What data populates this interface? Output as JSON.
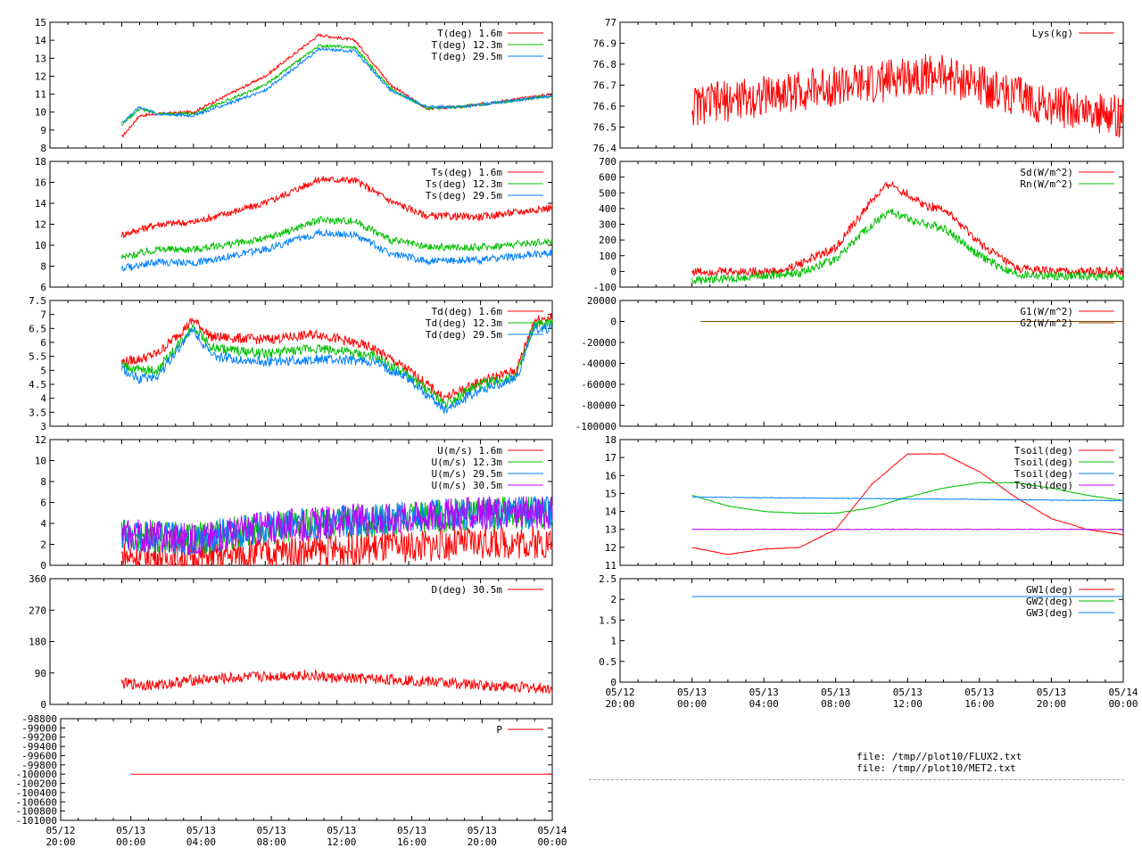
{
  "files": [
    "file: /tmp//plot10/FLUX2.txt",
    "file: /tmp//plot10/MET2.txt"
  ],
  "time_axis": {
    "labels": [
      [
        "05/12",
        "20:00"
      ],
      [
        "05/13",
        "00:00"
      ],
      [
        "05/13",
        "04:00"
      ],
      [
        "05/13",
        "08:00"
      ],
      [
        "05/13",
        "12:00"
      ],
      [
        "05/13",
        "16:00"
      ],
      [
        "05/13",
        "20:00"
      ],
      [
        "05/14",
        "00:00"
      ]
    ],
    "range_hours": [
      0,
      28
    ]
  },
  "chart_data": [
    {
      "type": "line",
      "panel": "left-1",
      "ylim": [
        8,
        15
      ],
      "yticks": [
        "8",
        "9",
        "10",
        "11",
        "12",
        "13",
        "14",
        "15"
      ],
      "yvals": [
        8,
        9,
        10,
        11,
        12,
        13,
        14,
        15
      ],
      "xstart": 4,
      "noise": 0.08,
      "series": [
        {
          "name": "T(deg)  1.6m",
          "color": "#ff0000",
          "x": [
            4,
            5,
            6,
            8,
            12,
            15,
            17,
            19,
            21,
            23,
            28
          ],
          "y": [
            8.6,
            9.8,
            9.9,
            10.0,
            12.0,
            14.3,
            14.0,
            11.5,
            10.2,
            10.3,
            11.0
          ]
        },
        {
          "name": "T(deg) 12.3m",
          "color": "#00c000",
          "x": [
            4,
            5,
            6,
            8,
            12,
            15,
            17,
            19,
            21,
            23,
            28
          ],
          "y": [
            9.3,
            10.2,
            9.9,
            9.9,
            11.5,
            13.7,
            13.6,
            11.3,
            10.2,
            10.3,
            10.9
          ]
        },
        {
          "name": "T(deg) 29.5m",
          "color": "#0080ff",
          "x": [
            4,
            5,
            6,
            8,
            12,
            15,
            17,
            19,
            21,
            23,
            28
          ],
          "y": [
            9.4,
            10.3,
            9.9,
            9.8,
            11.2,
            13.5,
            13.4,
            11.2,
            10.3,
            10.3,
            10.9
          ]
        }
      ]
    },
    {
      "type": "line",
      "panel": "left-2",
      "ylim": [
        6,
        18
      ],
      "yticks": [
        "6",
        "8",
        "10",
        "12",
        "14",
        "16",
        "18"
      ],
      "yvals": [
        6,
        8,
        10,
        12,
        14,
        16,
        18
      ],
      "xstart": 4,
      "noise": 0.35,
      "series": [
        {
          "name": "Ts(deg)  1.6m",
          "color": "#ff0000",
          "x": [
            4,
            6,
            8,
            12,
            15,
            17,
            19,
            21,
            24,
            28
          ],
          "y": [
            11.0,
            12.0,
            12.2,
            14.0,
            16.3,
            16.2,
            14.2,
            12.8,
            12.7,
            13.6
          ]
        },
        {
          "name": "Ts(deg) 12.3m",
          "color": "#00c000",
          "x": [
            4,
            6,
            8,
            12,
            15,
            17,
            19,
            21,
            24,
            28
          ],
          "y": [
            8.8,
            9.6,
            9.6,
            10.6,
            12.4,
            12.3,
            10.5,
            9.8,
            9.8,
            10.4
          ]
        },
        {
          "name": "Ts(deg) 29.5m",
          "color": "#0080ff",
          "x": [
            4,
            6,
            8,
            12,
            15,
            17,
            19,
            21,
            24,
            28
          ],
          "y": [
            7.8,
            8.4,
            8.3,
            9.6,
            11.2,
            11.0,
            9.2,
            8.5,
            8.6,
            9.3
          ]
        }
      ]
    },
    {
      "type": "line",
      "panel": "left-3",
      "ylim": [
        3,
        7.5
      ],
      "yticks": [
        "3",
        "3.5",
        "4",
        "4.5",
        "5",
        "5.5",
        "6",
        "6.5",
        "7",
        "7.5"
      ],
      "yvals": [
        3,
        3.5,
        4,
        4.5,
        5,
        5.5,
        6,
        6.5,
        7,
        7.5
      ],
      "xstart": 4,
      "noise": 0.18,
      "series": [
        {
          "name": "Td(deg)  1.6m",
          "color": "#ff0000",
          "x": [
            4,
            5,
            6,
            8,
            9,
            12,
            15,
            18,
            20,
            22,
            24,
            26,
            27,
            28
          ],
          "y": [
            5.3,
            5.4,
            5.6,
            6.8,
            6.2,
            6.1,
            6.3,
            5.8,
            5.0,
            4.0,
            4.6,
            5.0,
            6.8,
            6.9
          ]
        },
        {
          "name": "Td(deg) 12.3m",
          "color": "#00c000",
          "x": [
            4,
            5,
            6,
            8,
            9,
            12,
            15,
            18,
            20,
            22,
            24,
            26,
            27,
            28
          ],
          "y": [
            5.2,
            5.0,
            5.0,
            6.6,
            5.8,
            5.6,
            5.8,
            5.5,
            4.8,
            3.8,
            4.5,
            4.8,
            6.6,
            6.7
          ]
        },
        {
          "name": "Td(deg) 29.5m",
          "color": "#0080ff",
          "x": [
            4,
            5,
            6,
            8,
            9,
            12,
            15,
            18,
            20,
            22,
            24,
            26,
            27,
            28
          ],
          "y": [
            5.0,
            4.7,
            4.8,
            6.5,
            5.5,
            5.3,
            5.4,
            5.3,
            4.7,
            3.6,
            4.3,
            4.7,
            6.5,
            6.5
          ]
        }
      ]
    },
    {
      "type": "line",
      "panel": "left-4",
      "ylim": [
        0,
        12
      ],
      "yticks": [
        "0",
        "2",
        "4",
        "6",
        "8",
        "10",
        "12"
      ],
      "yvals": [
        0,
        2,
        4,
        6,
        8,
        10,
        12
      ],
      "xstart": 4,
      "noise": 1.6,
      "series": [
        {
          "name": "U(m/s)  1.6m",
          "color": "#ff0000",
          "x": [
            4,
            8,
            12,
            16,
            20,
            24,
            28
          ],
          "y": [
            0.8,
            0.7,
            1.2,
            1.5,
            1.8,
            2.2,
            2.2
          ]
        },
        {
          "name": "U(m/s) 12.3m",
          "color": "#00c000",
          "x": [
            4,
            8,
            12,
            16,
            20,
            24,
            28
          ],
          "y": [
            3.0,
            2.5,
            3.5,
            4.0,
            4.5,
            5.0,
            5.0
          ]
        },
        {
          "name": "U(m/s) 29.5m",
          "color": "#0080ff",
          "x": [
            4,
            8,
            12,
            16,
            20,
            24,
            28
          ],
          "y": [
            3.0,
            2.5,
            3.6,
            4.2,
            4.6,
            5.0,
            5.0
          ]
        },
        {
          "name": "U(m/s) 30.5m",
          "color": "#c000ff",
          "x": [
            4,
            8,
            12,
            16,
            20,
            24,
            28
          ],
          "y": [
            3.0,
            2.5,
            3.6,
            4.2,
            4.6,
            5.0,
            5.0
          ]
        }
      ]
    },
    {
      "type": "line",
      "panel": "left-5",
      "ylim": [
        0,
        360
      ],
      "yticks": [
        "0",
        "90",
        "180",
        "270",
        "360"
      ],
      "yvals": [
        0,
        90,
        180,
        270,
        360
      ],
      "xstart": 4,
      "noise": 16,
      "series": [
        {
          "name": "D(deg)  30.5m",
          "color": "#ff0000",
          "x": [
            4,
            6,
            8,
            10,
            12,
            14,
            16,
            20,
            24,
            28
          ],
          "y": [
            60,
            55,
            70,
            75,
            80,
            85,
            75,
            70,
            55,
            45
          ]
        }
      ]
    },
    {
      "type": "line",
      "panel": "left-6",
      "ylim": [
        -101000,
        -98800
      ],
      "yticks": [
        "-101000",
        "-100800",
        "-100600",
        "-100400",
        "-100200",
        "-100000",
        "-99800",
        "-99600",
        "-99400",
        "-99200",
        "-99000",
        "-98800"
      ],
      "yvals": [
        -101000,
        -100800,
        -100600,
        -100400,
        -100200,
        -100000,
        -99800,
        -99600,
        -99400,
        -99200,
        -99000,
        -98800
      ],
      "xstart": 4,
      "noise": 0,
      "series": [
        {
          "name": "P",
          "color": "#ff0000",
          "x": [
            4,
            28
          ],
          "y": [
            -100000,
            -100000
          ]
        }
      ]
    },
    {
      "type": "line",
      "panel": "right-1",
      "ylim": [
        76.4,
        77
      ],
      "yticks": [
        "76.4",
        "76.5",
        "76.6",
        "76.7",
        "76.8",
        "76.9",
        "77"
      ],
      "yvals": [
        76.4,
        76.5,
        76.6,
        76.7,
        76.8,
        76.9,
        77
      ],
      "xstart": 4,
      "noise": 0.1,
      "series": [
        {
          "name": "Lys(kg)",
          "color": "#ff0000",
          "x": [
            4,
            8,
            12,
            14,
            16,
            18,
            20,
            22,
            24,
            28
          ],
          "y": [
            76.6,
            76.65,
            76.7,
            76.7,
            76.75,
            76.75,
            76.7,
            76.65,
            76.6,
            76.55
          ]
        }
      ]
    },
    {
      "type": "line",
      "panel": "right-2",
      "ylim": [
        -100,
        700
      ],
      "yticks": [
        "-100",
        "0",
        "100",
        "200",
        "300",
        "400",
        "500",
        "600",
        "700"
      ],
      "yvals": [
        -100,
        0,
        100,
        200,
        300,
        400,
        500,
        600,
        700
      ],
      "xstart": 4,
      "noise": 28,
      "series": [
        {
          "name": "Sd(W/m^2)",
          "color": "#ff0000",
          "x": [
            4,
            9,
            10,
            12,
            14,
            15,
            17,
            18,
            20,
            22,
            24,
            28
          ],
          "y": [
            0,
            0,
            50,
            150,
            450,
            560,
            420,
            400,
            180,
            20,
            0,
            0
          ]
        },
        {
          "name": "Rn(W/m^2)",
          "color": "#00c000",
          "x": [
            4,
            9,
            10,
            12,
            14,
            15,
            17,
            18,
            20,
            22,
            24,
            28
          ],
          "y": [
            -60,
            -20,
            -10,
            80,
            300,
            380,
            300,
            280,
            100,
            -20,
            -30,
            -30
          ]
        }
      ]
    },
    {
      "type": "line",
      "panel": "right-3",
      "ylim": [
        -100000,
        20000
      ],
      "yticks": [
        "-100000",
        "-80000",
        "-60000",
        "-40000",
        "-20000",
        "0",
        "20000"
      ],
      "yvals": [
        -100000,
        -80000,
        -60000,
        -40000,
        -20000,
        0,
        20000
      ],
      "xstart": 4.5,
      "noise": 0,
      "series": [
        {
          "name": "G1(W/m^2)",
          "color": "#ff0000",
          "x": [
            4.5,
            28
          ],
          "y": [
            0,
            0
          ]
        },
        {
          "name": "G2(W/m^2)",
          "color": "#8b4500",
          "x": [
            4.5,
            28
          ],
          "y": [
            0,
            0
          ]
        }
      ]
    },
    {
      "type": "line",
      "panel": "right-4",
      "ylim": [
        11,
        18
      ],
      "yticks": [
        "11",
        "12",
        "13",
        "14",
        "15",
        "16",
        "17",
        "18"
      ],
      "yvals": [
        11,
        12,
        13,
        14,
        15,
        16,
        17,
        18
      ],
      "xstart": 4,
      "noise": 0.02,
      "series": [
        {
          "name": "Tsoil(deg)",
          "color": "#ff0000",
          "x": [
            4,
            6,
            8,
            10,
            12,
            14,
            16,
            18,
            20,
            22,
            24,
            26,
            28
          ],
          "y": [
            12.0,
            11.6,
            11.9,
            12.0,
            13.0,
            15.5,
            17.2,
            17.2,
            16.2,
            14.8,
            13.6,
            13.0,
            12.7
          ]
        },
        {
          "name": "Tsoil(deg)",
          "color": "#00c000",
          "x": [
            4,
            6,
            8,
            10,
            12,
            14,
            16,
            18,
            20,
            22,
            24,
            26,
            28
          ],
          "y": [
            14.9,
            14.3,
            14.0,
            13.9,
            13.9,
            14.2,
            14.8,
            15.3,
            15.6,
            15.6,
            15.3,
            14.9,
            14.6
          ]
        },
        {
          "name": "Tsoil(deg)",
          "color": "#0080ff",
          "x": [
            4,
            28
          ],
          "y": [
            14.8,
            14.6
          ]
        },
        {
          "name": "Tsoil(deg)",
          "color": "#c000ff",
          "x": [
            4,
            28
          ],
          "y": [
            13.0,
            13.0
          ]
        }
      ]
    },
    {
      "type": "line",
      "panel": "right-5",
      "ylim": [
        0,
        2.5
      ],
      "yticks": [
        "0",
        "0.5",
        "1",
        "1.5",
        "2",
        "2.5"
      ],
      "yvals": [
        0,
        0.5,
        1,
        1.5,
        2,
        2.5
      ],
      "xstart": 4,
      "noise": 0,
      "series": [
        {
          "name": "GW1(deg)",
          "color": "#ff0000",
          "x": [
            4,
            28
          ],
          "y": [
            2.07,
            2.07
          ]
        },
        {
          "name": "GW2(deg)",
          "color": "#00c000",
          "x": [
            4,
            28
          ],
          "y": [
            2.07,
            2.07
          ]
        },
        {
          "name": "GW3(deg)",
          "color": "#0080ff",
          "x": [
            4,
            28
          ],
          "y": [
            2.07,
            2.07
          ]
        }
      ]
    }
  ]
}
